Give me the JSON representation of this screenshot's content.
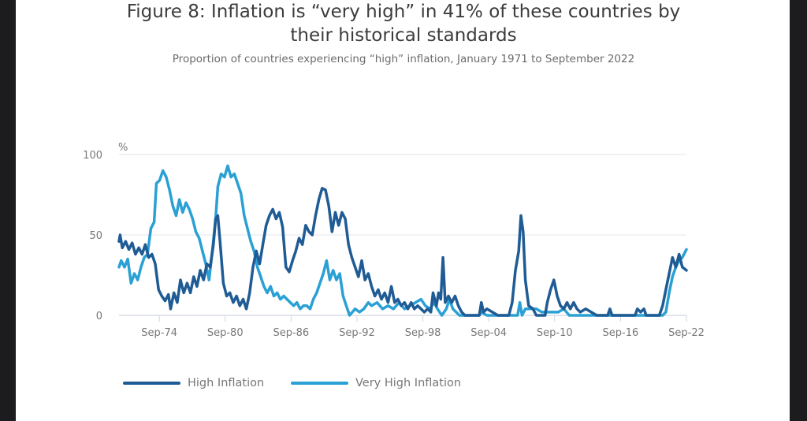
{
  "chart_data": {
    "type": "line",
    "title": "Figure 8: Inflation is “very high” in 41% of these countries by their historical standards",
    "title_line1": "Figure 8: Inflation is “very high” in 41% of these countries by",
    "title_line2": "their historical standards",
    "subtitle": "Proportion of countries experiencing “high” inflation, January 1971 to September 2022",
    "ylabel": "%",
    "xlabel": "",
    "ylim": [
      0,
      100
    ],
    "xlim": [
      1971.0,
      2022.67
    ],
    "yticks": [
      0,
      50,
      100
    ],
    "xticks": [
      {
        "label": "Sep-74",
        "x": 1974.67
      },
      {
        "label": "Sep-80",
        "x": 1980.67
      },
      {
        "label": "Sep-86",
        "x": 1986.67
      },
      {
        "label": "Sep-92",
        "x": 1992.67
      },
      {
        "label": "Sep-98",
        "x": 1998.67
      },
      {
        "label": "Sep-04",
        "x": 2004.67
      },
      {
        "label": "Sep-10",
        "x": 2010.67
      },
      {
        "label": "Sep-16",
        "x": 2016.67
      },
      {
        "label": "Sep-22",
        "x": 2022.67
      }
    ],
    "grid": true,
    "legend_position": "bottom-left",
    "series": [
      {
        "name": "High Inflation",
        "color": "#1f5b94",
        "points": [
          [
            1971.0,
            46
          ],
          [
            1971.1,
            50
          ],
          [
            1971.3,
            42
          ],
          [
            1971.6,
            46
          ],
          [
            1971.9,
            41
          ],
          [
            1972.2,
            45
          ],
          [
            1972.5,
            38
          ],
          [
            1972.8,
            42
          ],
          [
            1973.1,
            38
          ],
          [
            1973.4,
            44
          ],
          [
            1973.7,
            36
          ],
          [
            1974.0,
            38
          ],
          [
            1974.3,
            32
          ],
          [
            1974.6,
            16
          ],
          [
            1974.9,
            12
          ],
          [
            1975.2,
            9
          ],
          [
            1975.5,
            13
          ],
          [
            1975.7,
            4
          ],
          [
            1976.0,
            14
          ],
          [
            1976.3,
            8
          ],
          [
            1976.6,
            22
          ],
          [
            1976.9,
            14
          ],
          [
            1977.2,
            20
          ],
          [
            1977.5,
            14
          ],
          [
            1977.8,
            24
          ],
          [
            1978.1,
            18
          ],
          [
            1978.4,
            28
          ],
          [
            1978.7,
            22
          ],
          [
            1979.0,
            32
          ],
          [
            1979.3,
            30
          ],
          [
            1979.6,
            44
          ],
          [
            1979.8,
            60
          ],
          [
            1980.0,
            62
          ],
          [
            1980.2,
            46
          ],
          [
            1980.5,
            20
          ],
          [
            1980.8,
            12
          ],
          [
            1981.1,
            14
          ],
          [
            1981.4,
            8
          ],
          [
            1981.7,
            12
          ],
          [
            1982.0,
            6
          ],
          [
            1982.3,
            10
          ],
          [
            1982.6,
            4
          ],
          [
            1982.9,
            14
          ],
          [
            1983.2,
            30
          ],
          [
            1983.5,
            40
          ],
          [
            1983.8,
            32
          ],
          [
            1984.1,
            44
          ],
          [
            1984.4,
            56
          ],
          [
            1984.7,
            62
          ],
          [
            1985.0,
            66
          ],
          [
            1985.3,
            60
          ],
          [
            1985.6,
            64
          ],
          [
            1985.9,
            55
          ],
          [
            1986.2,
            30
          ],
          [
            1986.5,
            27
          ],
          [
            1986.8,
            34
          ],
          [
            1987.1,
            40
          ],
          [
            1987.4,
            48
          ],
          [
            1987.7,
            44
          ],
          [
            1988.0,
            56
          ],
          [
            1988.3,
            52
          ],
          [
            1988.6,
            50
          ],
          [
            1988.9,
            62
          ],
          [
            1989.2,
            72
          ],
          [
            1989.5,
            79
          ],
          [
            1989.8,
            78
          ],
          [
            1990.1,
            68
          ],
          [
            1990.4,
            52
          ],
          [
            1990.7,
            64
          ],
          [
            1991.0,
            56
          ],
          [
            1991.3,
            64
          ],
          [
            1991.6,
            60
          ],
          [
            1991.9,
            44
          ],
          [
            1992.2,
            36
          ],
          [
            1992.5,
            30
          ],
          [
            1992.8,
            24
          ],
          [
            1993.1,
            34
          ],
          [
            1993.4,
            22
          ],
          [
            1993.7,
            26
          ],
          [
            1994.0,
            18
          ],
          [
            1994.3,
            12
          ],
          [
            1994.6,
            16
          ],
          [
            1994.9,
            10
          ],
          [
            1995.2,
            14
          ],
          [
            1995.5,
            8
          ],
          [
            1995.8,
            18
          ],
          [
            1996.1,
            8
          ],
          [
            1996.4,
            10
          ],
          [
            1996.7,
            6
          ],
          [
            1997.0,
            8
          ],
          [
            1997.3,
            4
          ],
          [
            1997.6,
            8
          ],
          [
            1997.9,
            4
          ],
          [
            1998.2,
            6
          ],
          [
            1998.5,
            4
          ],
          [
            1998.8,
            2
          ],
          [
            1999.1,
            4
          ],
          [
            1999.4,
            2
          ],
          [
            1999.6,
            14
          ],
          [
            1999.9,
            6
          ],
          [
            2000.1,
            14
          ],
          [
            2000.3,
            10
          ],
          [
            2000.5,
            36
          ],
          [
            2000.7,
            8
          ],
          [
            2001.0,
            12
          ],
          [
            2001.3,
            8
          ],
          [
            2001.6,
            12
          ],
          [
            2001.9,
            6
          ],
          [
            2002.2,
            2
          ],
          [
            2002.5,
            0
          ],
          [
            2003.0,
            0
          ],
          [
            2003.8,
            0
          ],
          [
            2004.0,
            8
          ],
          [
            2004.2,
            2
          ],
          [
            2004.5,
            4
          ],
          [
            2005.0,
            2
          ],
          [
            2005.5,
            0
          ],
          [
            2006.5,
            0
          ],
          [
            2006.8,
            8
          ],
          [
            2007.1,
            28
          ],
          [
            2007.4,
            40
          ],
          [
            2007.6,
            62
          ],
          [
            2007.8,
            52
          ],
          [
            2008.0,
            22
          ],
          [
            2008.3,
            6
          ],
          [
            2008.7,
            4
          ],
          [
            2009.0,
            0
          ],
          [
            2009.8,
            0
          ],
          [
            2010.0,
            8
          ],
          [
            2010.3,
            16
          ],
          [
            2010.6,
            22
          ],
          [
            2010.9,
            12
          ],
          [
            2011.2,
            6
          ],
          [
            2011.5,
            4
          ],
          [
            2011.8,
            8
          ],
          [
            2012.1,
            4
          ],
          [
            2012.4,
            8
          ],
          [
            2012.7,
            4
          ],
          [
            2013.0,
            2
          ],
          [
            2013.5,
            4
          ],
          [
            2014.0,
            2
          ],
          [
            2014.5,
            0
          ],
          [
            2015.5,
            0
          ],
          [
            2015.7,
            4
          ],
          [
            2015.9,
            0
          ],
          [
            2018.0,
            0
          ],
          [
            2018.2,
            4
          ],
          [
            2018.5,
            2
          ],
          [
            2018.8,
            4
          ],
          [
            2019.0,
            0
          ],
          [
            2020.2,
            0
          ],
          [
            2020.5,
            6
          ],
          [
            2020.8,
            16
          ],
          [
            2021.1,
            26
          ],
          [
            2021.4,
            36
          ],
          [
            2021.7,
            30
          ],
          [
            2022.0,
            38
          ],
          [
            2022.3,
            30
          ],
          [
            2022.67,
            28
          ]
        ]
      },
      {
        "name": "Very High Inflation",
        "color": "#2aa0d4",
        "points": [
          [
            1971.0,
            30
          ],
          [
            1971.2,
            34
          ],
          [
            1971.5,
            30
          ],
          [
            1971.8,
            35
          ],
          [
            1972.1,
            20
          ],
          [
            1972.4,
            26
          ],
          [
            1972.7,
            22
          ],
          [
            1973.0,
            30
          ],
          [
            1973.3,
            36
          ],
          [
            1973.6,
            38
          ],
          [
            1973.9,
            54
          ],
          [
            1974.2,
            58
          ],
          [
            1974.4,
            82
          ],
          [
            1974.7,
            84
          ],
          [
            1975.0,
            90
          ],
          [
            1975.3,
            86
          ],
          [
            1975.6,
            78
          ],
          [
            1975.9,
            68
          ],
          [
            1976.2,
            62
          ],
          [
            1976.5,
            72
          ],
          [
            1976.8,
            64
          ],
          [
            1977.1,
            70
          ],
          [
            1977.4,
            66
          ],
          [
            1977.7,
            60
          ],
          [
            1978.0,
            52
          ],
          [
            1978.3,
            48
          ],
          [
            1978.6,
            40
          ],
          [
            1978.9,
            32
          ],
          [
            1979.2,
            22
          ],
          [
            1979.5,
            40
          ],
          [
            1979.8,
            60
          ],
          [
            1980.0,
            80
          ],
          [
            1980.3,
            88
          ],
          [
            1980.6,
            86
          ],
          [
            1980.9,
            93
          ],
          [
            1981.2,
            86
          ],
          [
            1981.5,
            88
          ],
          [
            1981.8,
            82
          ],
          [
            1982.1,
            76
          ],
          [
            1982.4,
            62
          ],
          [
            1982.7,
            54
          ],
          [
            1983.0,
            46
          ],
          [
            1983.3,
            40
          ],
          [
            1983.6,
            30
          ],
          [
            1983.9,
            24
          ],
          [
            1984.2,
            18
          ],
          [
            1984.5,
            14
          ],
          [
            1984.8,
            18
          ],
          [
            1985.1,
            12
          ],
          [
            1985.4,
            14
          ],
          [
            1985.7,
            10
          ],
          [
            1986.0,
            12
          ],
          [
            1986.3,
            10
          ],
          [
            1986.6,
            8
          ],
          [
            1986.9,
            6
          ],
          [
            1987.2,
            8
          ],
          [
            1987.5,
            4
          ],
          [
            1987.8,
            6
          ],
          [
            1988.1,
            6
          ],
          [
            1988.4,
            4
          ],
          [
            1988.7,
            10
          ],
          [
            1989.0,
            14
          ],
          [
            1989.3,
            20
          ],
          [
            1989.6,
            26
          ],
          [
            1989.9,
            34
          ],
          [
            1990.2,
            22
          ],
          [
            1990.5,
            28
          ],
          [
            1990.8,
            22
          ],
          [
            1991.1,
            26
          ],
          [
            1991.4,
            12
          ],
          [
            1991.7,
            6
          ],
          [
            1992.0,
            0
          ],
          [
            1992.5,
            4
          ],
          [
            1992.9,
            2
          ],
          [
            1993.3,
            4
          ],
          [
            1993.7,
            8
          ],
          [
            1994.0,
            6
          ],
          [
            1994.5,
            8
          ],
          [
            1995.0,
            4
          ],
          [
            1995.5,
            6
          ],
          [
            1996.0,
            4
          ],
          [
            1996.5,
            8
          ],
          [
            1997.0,
            4
          ],
          [
            1997.5,
            6
          ],
          [
            1998.0,
            8
          ],
          [
            1998.5,
            10
          ],
          [
            1998.9,
            6
          ],
          [
            1999.3,
            4
          ],
          [
            1999.7,
            8
          ],
          [
            2000.0,
            4
          ],
          [
            2000.4,
            0
          ],
          [
            2000.8,
            4
          ],
          [
            2001.1,
            10
          ],
          [
            2001.4,
            4
          ],
          [
            2001.7,
            2
          ],
          [
            2002.0,
            0
          ],
          [
            2003.8,
            0
          ],
          [
            2004.0,
            2
          ],
          [
            2004.5,
            0
          ],
          [
            2007.3,
            0
          ],
          [
            2007.5,
            8
          ],
          [
            2007.7,
            0
          ],
          [
            2008.0,
            4
          ],
          [
            2009.0,
            4
          ],
          [
            2009.5,
            2
          ],
          [
            2011.0,
            2
          ],
          [
            2011.5,
            4
          ],
          [
            2012.0,
            0
          ],
          [
            2020.5,
            0
          ],
          [
            2020.8,
            2
          ],
          [
            2021.1,
            14
          ],
          [
            2021.4,
            24
          ],
          [
            2021.7,
            30
          ],
          [
            2022.0,
            34
          ],
          [
            2022.3,
            36
          ],
          [
            2022.67,
            41
          ]
        ]
      }
    ]
  }
}
